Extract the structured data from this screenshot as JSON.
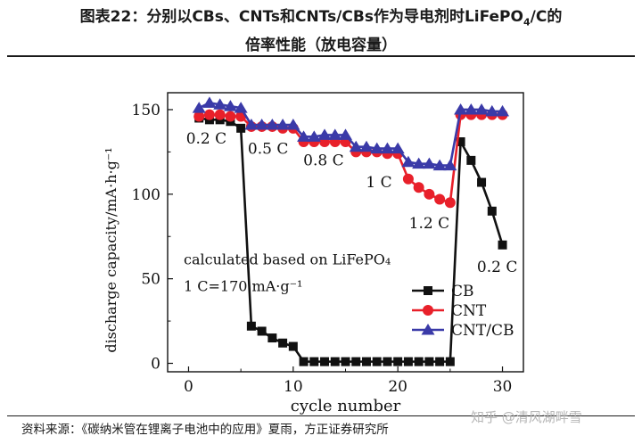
{
  "figure": {
    "title_line1": "图表22：分别以CBs、CNTs和CNTs/CBs作为导电剂时LiFePO",
    "title_sub": "4",
    "title_line1_end": "/C的",
    "title_line2": "倍率性能（放电容量）"
  },
  "source": "资料来源：《碳纳米管在锂离子电池中的应用》夏雨，方正证券研究所",
  "watermark": "知乎 @清风湖畔雪",
  "chart_data": {
    "type": "line",
    "xlabel": "cycle number",
    "ylabel": "discharge capacity/mA·h·g⁻¹",
    "xlim": [
      -2,
      32
    ],
    "ylim": [
      -5,
      160
    ],
    "xticks": [
      0,
      10,
      20,
      30
    ],
    "yticks": [
      0,
      50,
      100,
      150
    ],
    "grid": false,
    "legend_position": "bottom-right",
    "annotation_lines": [
      "calculated based on LiFePO₄",
      "1 C=170 mA·g⁻¹"
    ],
    "rate_labels": [
      {
        "text": "0.2 C",
        "x": 1.7,
        "y": 130
      },
      {
        "text": "0.5 C",
        "x": 7.6,
        "y": 124
      },
      {
        "text": "0.8 C",
        "x": 12.9,
        "y": 117
      },
      {
        "text": "1 C",
        "x": 18.2,
        "y": 104
      },
      {
        "text": "1.2 C",
        "x": 23.0,
        "y": 80
      },
      {
        "text": "0.2 C",
        "x": 29.5,
        "y": 54
      }
    ],
    "series": [
      {
        "name": "CB",
        "marker": "square",
        "color": "#111111",
        "x": [
          1,
          2,
          3,
          4,
          5,
          6,
          7,
          8,
          9,
          10,
          11,
          12,
          13,
          14,
          15,
          16,
          17,
          18,
          19,
          20,
          21,
          22,
          23,
          24,
          25,
          26,
          27,
          28,
          29,
          30
        ],
        "y": [
          145,
          144,
          144,
          143,
          139,
          22,
          19,
          15,
          12,
          10,
          1,
          1,
          1,
          1,
          1,
          1,
          1,
          1,
          1,
          1,
          1,
          1,
          1,
          1,
          1,
          131,
          120,
          107,
          90,
          70
        ]
      },
      {
        "name": "CNT",
        "marker": "circle",
        "color": "#e8202a",
        "x": [
          1,
          2,
          3,
          4,
          5,
          6,
          7,
          8,
          9,
          10,
          11,
          12,
          13,
          14,
          15,
          16,
          17,
          18,
          19,
          20,
          21,
          22,
          23,
          24,
          25,
          26,
          27,
          28,
          29,
          30
        ],
        "y": [
          146,
          147,
          147,
          146,
          146,
          140,
          140,
          140,
          139,
          139,
          131,
          131,
          131,
          131,
          131,
          125,
          125,
          125,
          124,
          124,
          109,
          104,
          100,
          97,
          95,
          147,
          147,
          147,
          147,
          147
        ]
      },
      {
        "name": "CNT/CB",
        "marker": "triangle",
        "color": "#3a3aa8",
        "x": [
          1,
          2,
          3,
          4,
          5,
          6,
          7,
          8,
          9,
          10,
          11,
          12,
          13,
          14,
          15,
          16,
          17,
          18,
          19,
          20,
          21,
          22,
          23,
          24,
          25,
          26,
          27,
          28,
          29,
          30
        ],
        "y": [
          151,
          154,
          153,
          152,
          151,
          141,
          141,
          141,
          141,
          141,
          134,
          134,
          135,
          135,
          135,
          128,
          128,
          127,
          127,
          127,
          119,
          118,
          118,
          117,
          117,
          150,
          150,
          150,
          149,
          149
        ]
      }
    ]
  }
}
